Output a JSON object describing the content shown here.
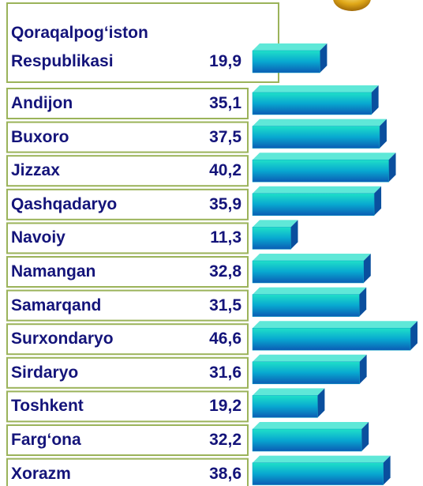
{
  "chart_data": {
    "type": "bar",
    "categories": [
      "Qoraqalpog‘iston Respublikasi",
      "Andijon",
      "Buxoro",
      "Jizzax",
      "Qashqadaryo",
      "Navoiy",
      "Namangan",
      "Samarqand",
      "Surxondaryo",
      "Sirdaryo",
      "Toshkent",
      "Farg‘ona",
      "Xorazm"
    ],
    "values": [
      19.9,
      35.1,
      37.5,
      40.2,
      35.9,
      11.3,
      32.8,
      31.5,
      46.6,
      31.6,
      19.2,
      32.2,
      38.6
    ],
    "value_labels": [
      "19,9",
      "35,1",
      "37,5",
      "40,2",
      "35,9",
      "11,3",
      "32,8",
      "31,5",
      "46,6",
      "31,6",
      "19,2",
      "32,2",
      "38,6"
    ],
    "color": "#0aa6c8"
  }
}
